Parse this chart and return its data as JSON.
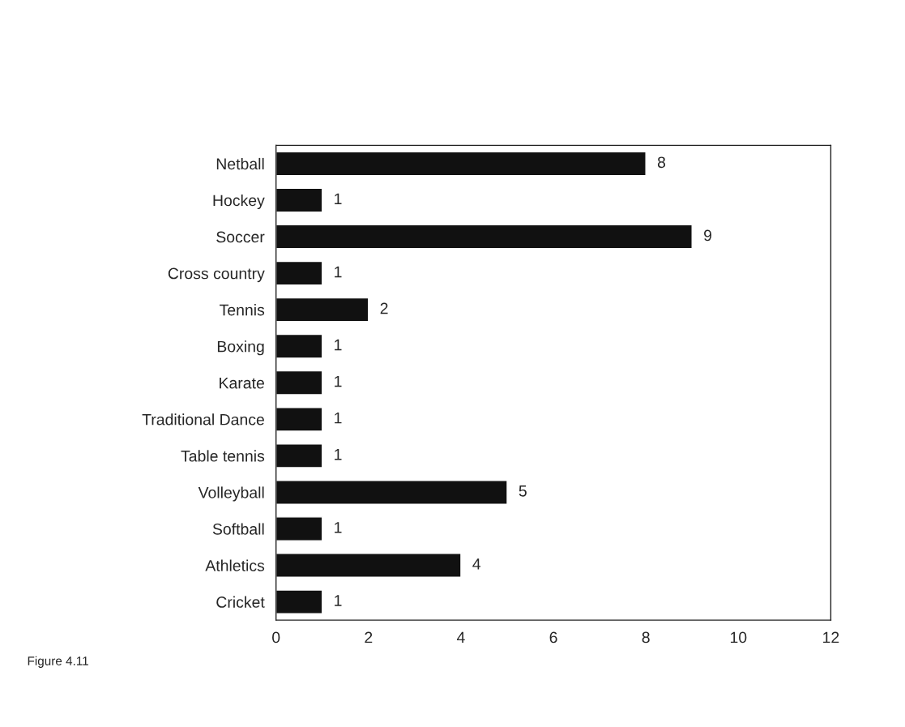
{
  "chart_data": {
    "type": "bar",
    "orientation": "horizontal",
    "categories": [
      "Netball",
      "Hockey",
      "Soccer",
      "Cross country",
      "Tennis",
      "Boxing",
      "Karate",
      "Traditional Dance",
      "Table tennis",
      "Volleyball",
      "Softball",
      "Athletics",
      "Cricket"
    ],
    "values": [
      8,
      1,
      9,
      1,
      2,
      1,
      1,
      1,
      1,
      5,
      1,
      4,
      1
    ],
    "color": "#111111",
    "xlim": [
      0,
      12
    ],
    "xticks": [
      0,
      2,
      4,
      6,
      8,
      10,
      12
    ],
    "data_labels": true,
    "grid": false,
    "legend": false,
    "annotations": [
      "Figure 4.11"
    ]
  }
}
